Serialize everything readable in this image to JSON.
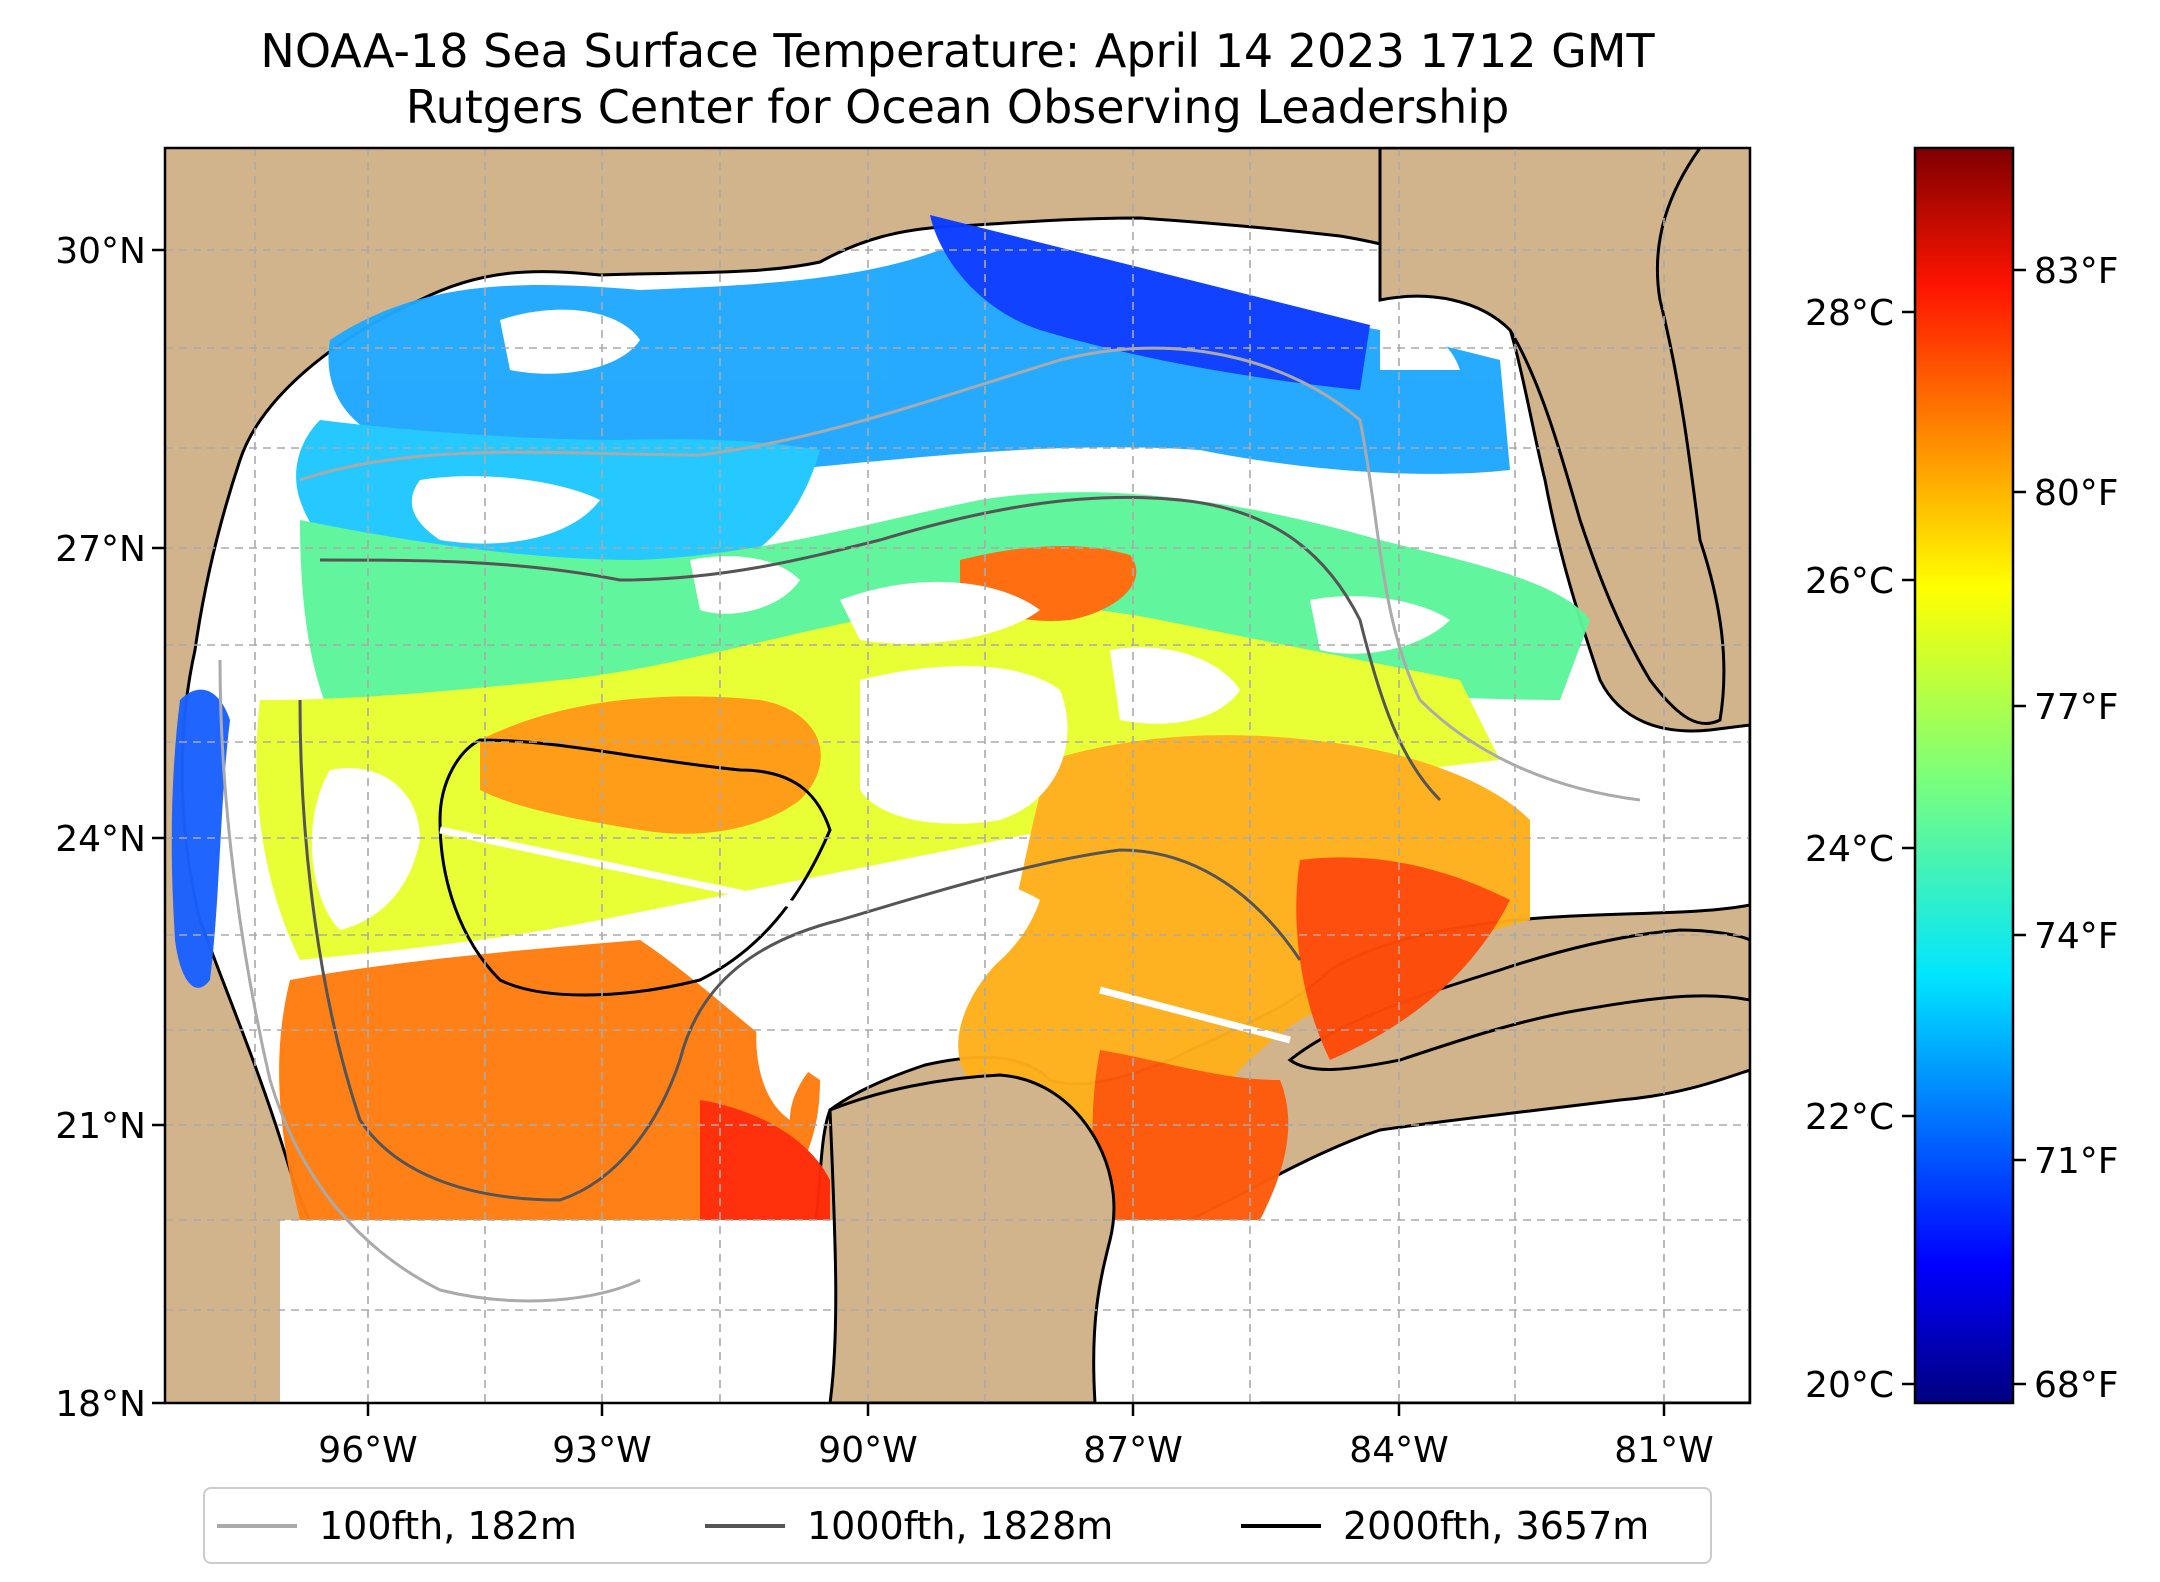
{
  "title": "NOAA-18 Sea Surface Temperature: April 14 2023 1712 GMT",
  "subtitle": "Rutgers Center for Ocean Observing Leadership",
  "map": {
    "lat_ticks": [
      "30°N",
      "27°N",
      "24°N",
      "21°N",
      "18°N"
    ],
    "lon_ticks": [
      "96°W",
      "93°W",
      "90°W",
      "87°W",
      "84°W",
      "81°W"
    ],
    "lat_range": [
      18,
      31
    ],
    "lon_range": [
      -98.3,
      -80.4
    ],
    "land_color": "#d2b48c",
    "no_data_color": "#ffffff"
  },
  "colorbar": {
    "colormap": "jet",
    "celsius_ticks": [
      "28°C",
      "26°C",
      "24°C",
      "22°C",
      "20°C"
    ],
    "fahrenheit_ticks": [
      "83°F",
      "80°F",
      "77°F",
      "74°F",
      "71°F",
      "68°F"
    ],
    "range_c": [
      19.9,
      29.2
    ]
  },
  "legend": [
    {
      "label": "100fth, 182m",
      "color": "#aaaaaa"
    },
    {
      "label": "1000fth, 1828m",
      "color": "#555555"
    },
    {
      "label": "2000fth, 3657m",
      "color": "#000000"
    }
  ]
}
